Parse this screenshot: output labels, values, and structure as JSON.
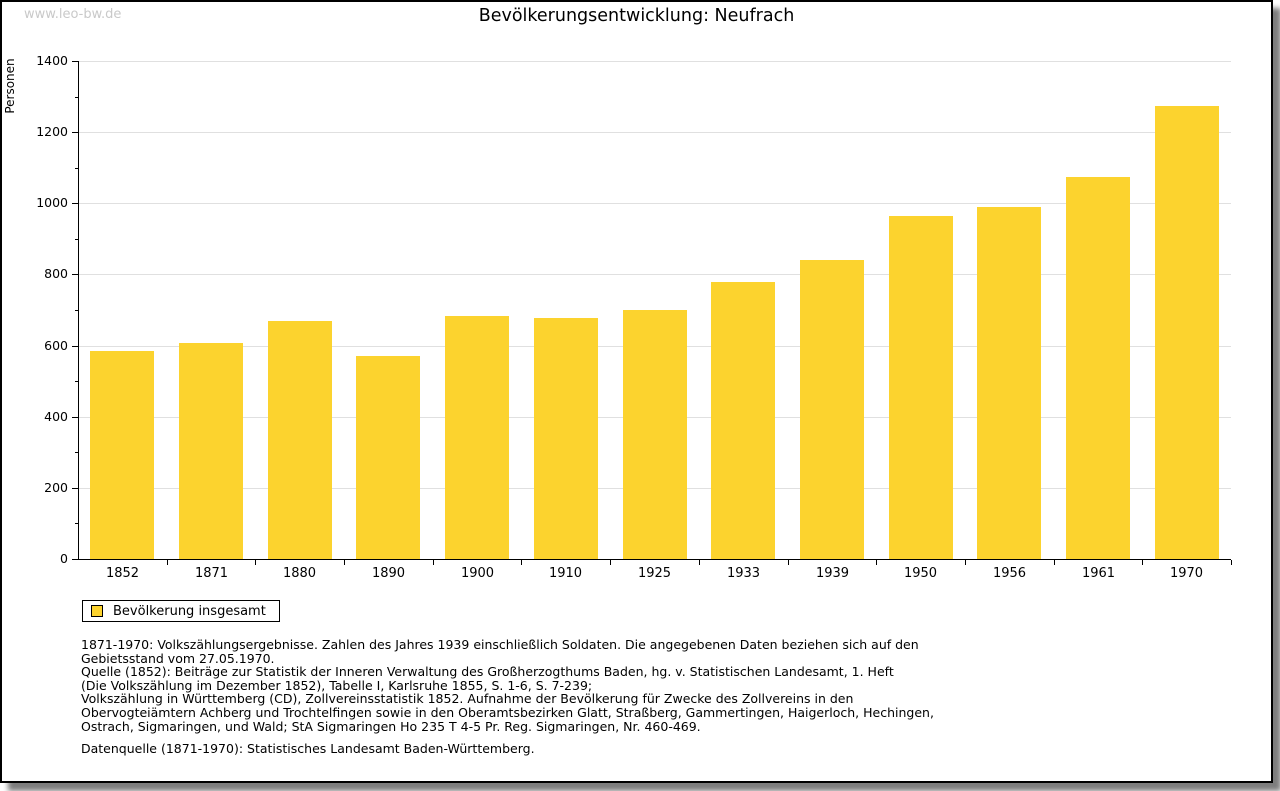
{
  "watermark": "www.leo-bw.de",
  "title": "Bevölkerungsentwicklung: Neufrach",
  "chart_data": {
    "type": "bar",
    "title": "Bevölkerungsentwicklung: Neufrach",
    "ylabel": "Personen",
    "xlabel": "",
    "ylim": [
      0,
      1400
    ],
    "ytick_major_step": 200,
    "ytick_minor_step": 100,
    "grid": true,
    "legend_position": "bottom-left",
    "categories": [
      "1852",
      "1871",
      "1880",
      "1890",
      "1900",
      "1910",
      "1925",
      "1933",
      "1939",
      "1950",
      "1956",
      "1961",
      "1970"
    ],
    "values": [
      586,
      607,
      668,
      572,
      684,
      678,
      699,
      778,
      841,
      965,
      990,
      1075,
      1274
    ],
    "series_label": "Bevölkerung insgesamt",
    "bar_color": "#FCD32E"
  },
  "legend": {
    "label": "Bevölkerung insgesamt"
  },
  "footnotes": {
    "lines": [
      "1871-1970: Volkszählungsergebnisse. Zahlen des Jahres 1939 einschließlich Soldaten. Die angegebenen Daten beziehen sich auf den",
      "Gebietsstand vom 27.05.1970.",
      "Quelle (1852): Beiträge zur Statistik der Inneren Verwaltung des Großherzogthums Baden, hg. v. Statistischen Landesamt, 1. Heft",
      "(Die Volkszählung im Dezember 1852), Tabelle I, Karlsruhe 1855, S. 1-6, S. 7-239;",
      "Volkszählung in Württemberg (CD), Zollvereinsstatistik 1852. Aufnahme der Bevölkerung für Zwecke des Zollvereins in den",
      "Obervogteiämtern Achberg und Trochtelfingen sowie in den Oberamtsbezirken Glatt, Straßberg, Gammertingen, Haigerloch, Hechingen,",
      "Ostrach, Sigmaringen, und Wald; StA Sigmaringen Ho 235 T 4-5 Pr. Reg. Sigmaringen, Nr. 460-469."
    ],
    "source_line": "Datenquelle (1871-1970): Statistisches Landesamt Baden-Württemberg."
  },
  "colors": {
    "bar": "#FCD32E",
    "grid": "#E0E0E0",
    "axis": "#000000",
    "watermark_text": "#C9C9C9",
    "background": "#FFFFFF",
    "shadow": "#7D7D7D"
  }
}
